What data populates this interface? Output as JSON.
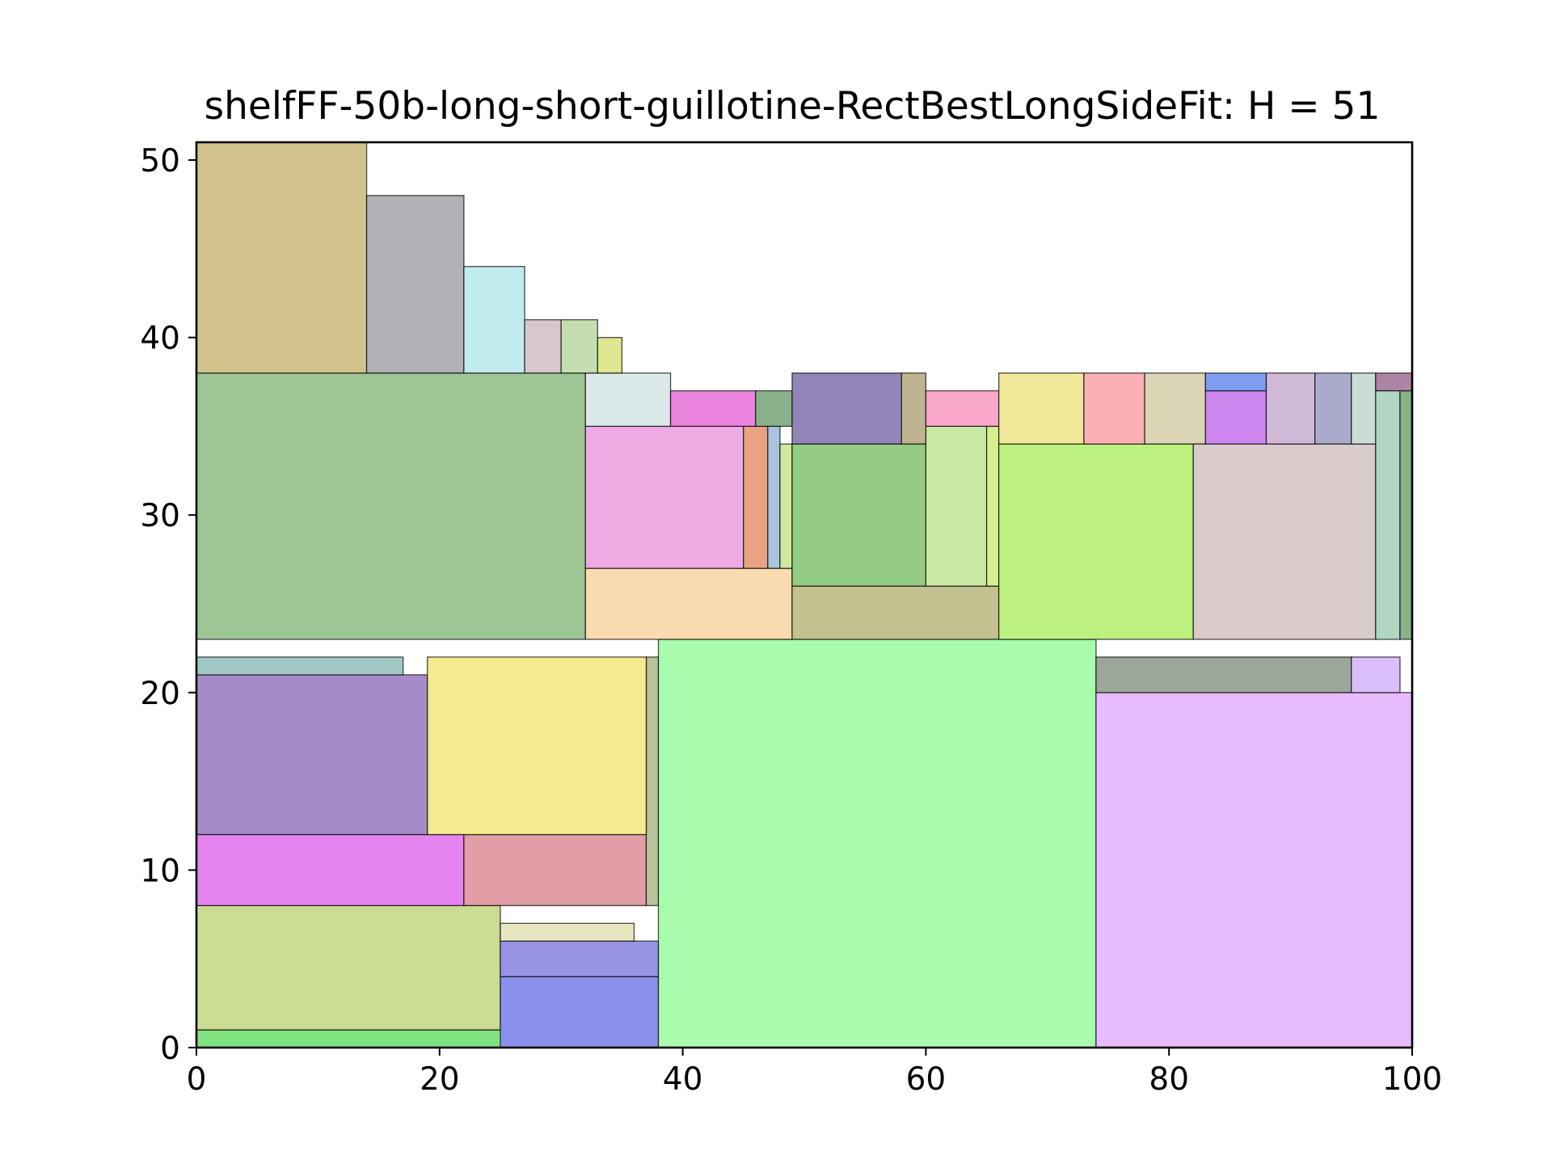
{
  "chart_data": {
    "type": "rectangle_packing",
    "title": "shelfFF-50b-long-short-guillotine-RectBestLongSideFit: H = 51",
    "xlabel": "",
    "ylabel": "",
    "xlim": [
      0,
      100
    ],
    "ylim": [
      0,
      51
    ],
    "xticks": [
      0,
      20,
      40,
      60,
      80,
      100
    ],
    "xtick_labels": [
      "0",
      "20",
      "40",
      "60",
      "80",
      "100"
    ],
    "yticks": [
      0,
      10,
      20,
      30,
      40,
      50
    ],
    "ytick_labels": [
      "0",
      "10",
      "20",
      "30",
      "40",
      "50"
    ],
    "grid": false,
    "rectangles": [
      {
        "x": 0,
        "y": 0,
        "w": 38,
        "h": 1,
        "color": "#7fe27f"
      },
      {
        "x": 0,
        "y": 1,
        "w": 25,
        "h": 7,
        "color": "#cbdc93"
      },
      {
        "x": 25,
        "y": 0,
        "w": 13,
        "h": 4,
        "color": "#8a91ec"
      },
      {
        "x": 25,
        "y": 4,
        "w": 13,
        "h": 2,
        "color": "#9993e4"
      },
      {
        "x": 25,
        "y": 6,
        "w": 11,
        "h": 1,
        "color": "#e6e7c0"
      },
      {
        "x": 0,
        "y": 8,
        "w": 22,
        "h": 4,
        "color": "#e684f0"
      },
      {
        "x": 22,
        "y": 8,
        "w": 15,
        "h": 4,
        "color": "#e29da6"
      },
      {
        "x": 37,
        "y": 8,
        "w": 1,
        "h": 14,
        "color": "#bac29c"
      },
      {
        "x": 0,
        "y": 12,
        "w": 19,
        "h": 9,
        "color": "#a58bc7"
      },
      {
        "x": 19,
        "y": 12,
        "w": 18,
        "h": 10,
        "color": "#f6ea8f"
      },
      {
        "x": 0,
        "y": 21,
        "w": 17,
        "h": 1,
        "color": "#a1c9c5"
      },
      {
        "x": 38,
        "y": 0,
        "w": 36,
        "h": 23,
        "color": "#a9fbad"
      },
      {
        "x": 74,
        "y": 0,
        "w": 26,
        "h": 20,
        "color": "#e8bbfd"
      },
      {
        "x": 74,
        "y": 20,
        "w": 21,
        "h": 2,
        "color": "#9ca69b"
      },
      {
        "x": 95,
        "y": 20,
        "w": 4,
        "h": 2,
        "color": "#dabef9"
      },
      {
        "x": 0,
        "y": 23,
        "w": 32,
        "h": 15,
        "color": "#9ec594"
      },
      {
        "x": 32,
        "y": 23,
        "w": 17,
        "h": 4,
        "color": "#fadbaf"
      },
      {
        "x": 32,
        "y": 27,
        "w": 13,
        "h": 8,
        "color": "#efaae4"
      },
      {
        "x": 45,
        "y": 27,
        "w": 2,
        "h": 8,
        "color": "#e8a384"
      },
      {
        "x": 47,
        "y": 27,
        "w": 1,
        "h": 8,
        "color": "#a9c5de"
      },
      {
        "x": 48,
        "y": 27,
        "w": 1,
        "h": 7,
        "color": "#cfe89e"
      },
      {
        "x": 32,
        "y": 35,
        "w": 7,
        "h": 3,
        "color": "#dbe9e8"
      },
      {
        "x": 39,
        "y": 35,
        "w": 7,
        "h": 2,
        "color": "#ea84df"
      },
      {
        "x": 46,
        "y": 35,
        "w": 3,
        "h": 2,
        "color": "#88b08b"
      },
      {
        "x": 49,
        "y": 23,
        "w": 17,
        "h": 3,
        "color": "#c4c190"
      },
      {
        "x": 49,
        "y": 26,
        "w": 11,
        "h": 8,
        "color": "#93cb82"
      },
      {
        "x": 60,
        "y": 26,
        "w": 5,
        "h": 9,
        "color": "#c8eaa6"
      },
      {
        "x": 65,
        "y": 26,
        "w": 1,
        "h": 9,
        "color": "#d4ee91"
      },
      {
        "x": 49,
        "y": 34,
        "w": 9,
        "h": 4,
        "color": "#9286b8"
      },
      {
        "x": 58,
        "y": 34,
        "w": 2,
        "h": 4,
        "color": "#bfb48f"
      },
      {
        "x": 60,
        "y": 35,
        "w": 6,
        "h": 2,
        "color": "#f9a7c8"
      },
      {
        "x": 66,
        "y": 23,
        "w": 16,
        "h": 11,
        "color": "#bcf07f"
      },
      {
        "x": 66,
        "y": 34,
        "w": 7,
        "h": 4,
        "color": "#efe899"
      },
      {
        "x": 73,
        "y": 34,
        "w": 5,
        "h": 4,
        "color": "#f9b1b6"
      },
      {
        "x": 78,
        "y": 34,
        "w": 5,
        "h": 4,
        "color": "#dbd5b5"
      },
      {
        "x": 82,
        "y": 23,
        "w": 15,
        "h": 11,
        "color": "#d9cacb"
      },
      {
        "x": 83,
        "y": 34,
        "w": 5,
        "h": 3,
        "color": "#cd86f0"
      },
      {
        "x": 83,
        "y": 37,
        "w": 5,
        "h": 1,
        "color": "#7f9cf0"
      },
      {
        "x": 88,
        "y": 34,
        "w": 4,
        "h": 4,
        "color": "#d0b9d6"
      },
      {
        "x": 92,
        "y": 34,
        "w": 3,
        "h": 4,
        "color": "#aaaacd"
      },
      {
        "x": 95,
        "y": 34,
        "w": 2,
        "h": 4,
        "color": "#cbdcd4"
      },
      {
        "x": 97,
        "y": 23,
        "w": 2,
        "h": 14,
        "color": "#b0d7c2"
      },
      {
        "x": 99,
        "y": 23,
        "w": 1,
        "h": 14,
        "color": "#86b486"
      },
      {
        "x": 97,
        "y": 37,
        "w": 3,
        "h": 1,
        "color": "#ad84a5"
      },
      {
        "x": 0,
        "y": 38,
        "w": 14,
        "h": 13,
        "color": "#d2c48c"
      },
      {
        "x": 14,
        "y": 38,
        "w": 8,
        "h": 10,
        "color": "#b2b2b6"
      },
      {
        "x": 22,
        "y": 38,
        "w": 5,
        "h": 6,
        "color": "#c0ebef"
      },
      {
        "x": 27,
        "y": 38,
        "w": 3,
        "h": 3,
        "color": "#d7c7cf"
      },
      {
        "x": 30,
        "y": 38,
        "w": 3,
        "h": 3,
        "color": "#c4deb0"
      },
      {
        "x": 33,
        "y": 38,
        "w": 2,
        "h": 2,
        "color": "#e1e690"
      }
    ]
  }
}
